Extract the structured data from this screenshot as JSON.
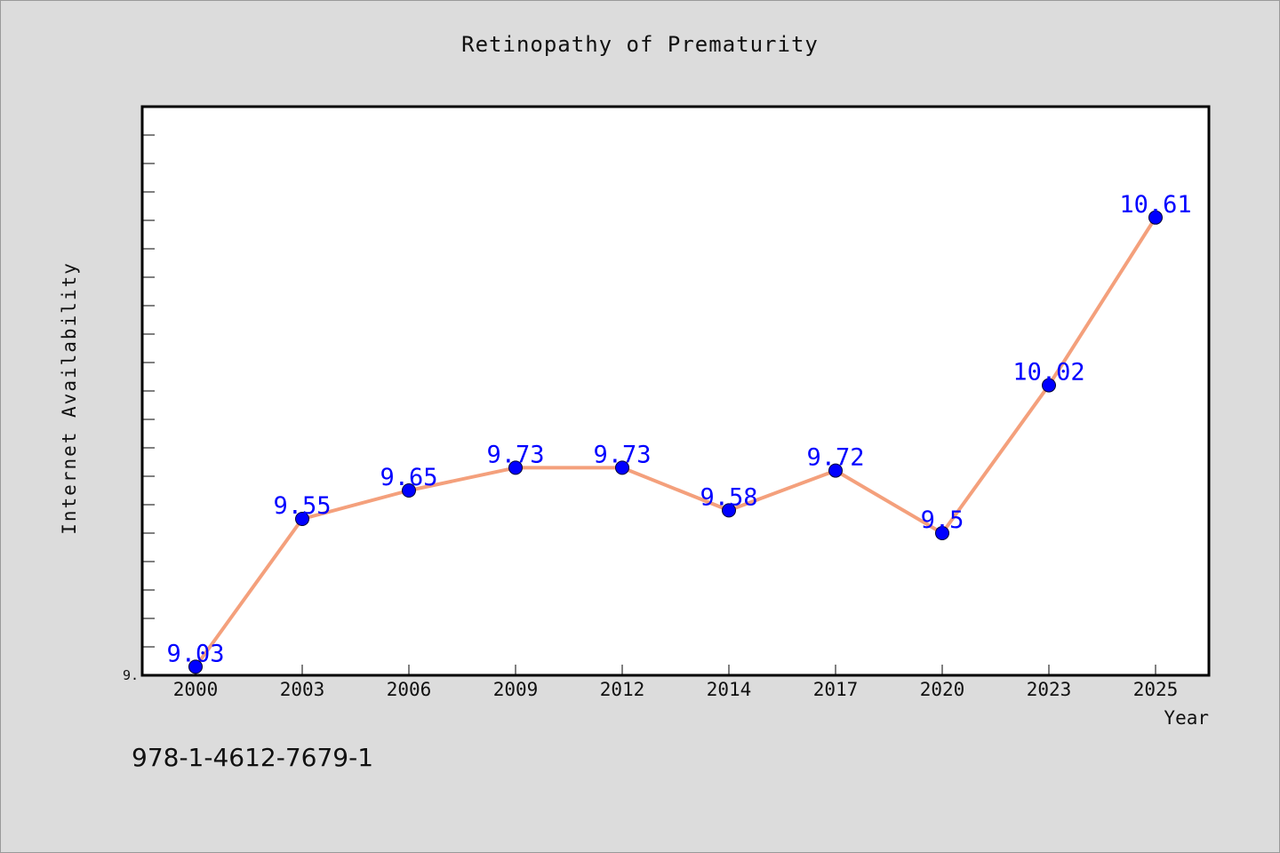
{
  "chart_data": {
    "type": "line",
    "title": "Retinopathy of Prematurity",
    "xlabel": "Year",
    "ylabel": "Internet Availability",
    "categories": [
      "2000",
      "2003",
      "2006",
      "2009",
      "2012",
      "2014",
      "2017",
      "2020",
      "2023",
      "2025"
    ],
    "series": [
      {
        "values": [
          9.03,
          9.55,
          9.65,
          9.73,
          9.73,
          9.58,
          9.72,
          9.5,
          10.02,
          10.61
        ]
      }
    ],
    "data_labels": [
      "9.03",
      "9.55",
      "9.65",
      "9.73",
      "9.73",
      "9.58",
      "9.72",
      "9.5",
      "10.02",
      "10.61"
    ],
    "ylim": [
      9.0,
      11.0
    ],
    "y_tick_label": "9.",
    "grid": false,
    "line_color": "#f4a07c",
    "marker_color": "#0000ff",
    "label_color": "#0000ff"
  },
  "footer": {
    "code": "978-1-4612-7679-1"
  }
}
